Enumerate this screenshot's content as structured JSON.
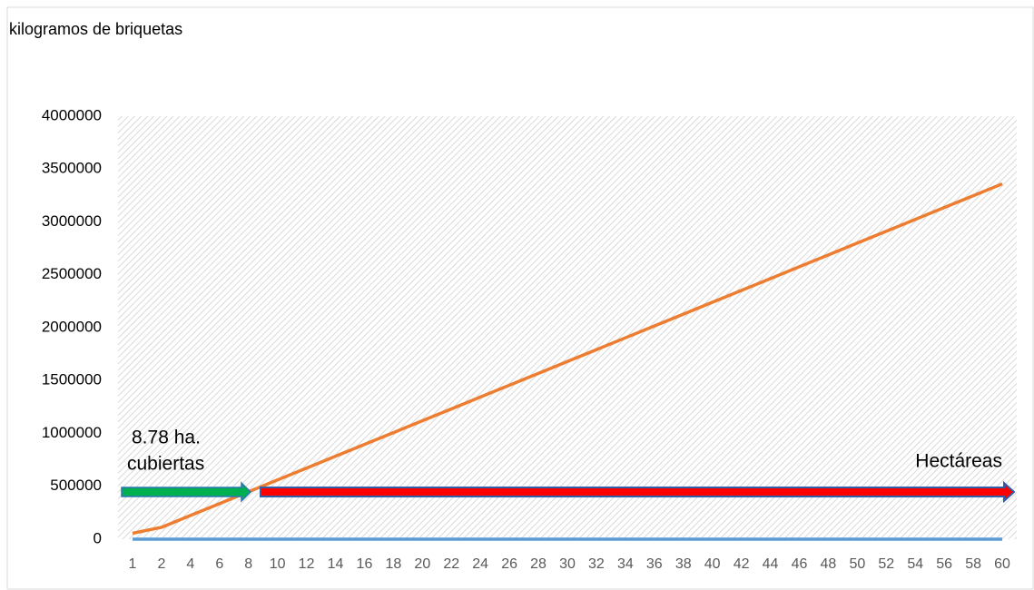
{
  "chart_data": {
    "type": "line",
    "title": "kilogramos de briquetas",
    "categories": [
      1,
      2,
      4,
      6,
      8,
      10,
      12,
      14,
      16,
      18,
      20,
      22,
      24,
      26,
      28,
      30,
      32,
      34,
      36,
      38,
      40,
      42,
      44,
      46,
      48,
      50,
      52,
      54,
      56,
      58,
      60
    ],
    "series": [
      {
        "color": "#ed7d31",
        "values": [
          56000,
          112000,
          224000,
          336000,
          448000,
          560000,
          672000,
          784000,
          896000,
          1008000,
          1120000,
          1232000,
          1344000,
          1456000,
          1568000,
          1680000,
          1792000,
          1904000,
          2016000,
          2128000,
          2240000,
          2352000,
          2464000,
          2576000,
          2688000,
          2800000,
          2912000,
          3024000,
          3136000,
          3248000,
          3360000
        ]
      },
      {
        "color": "#5b9bd5",
        "values": [
          0,
          0,
          0,
          0,
          0,
          0,
          0,
          0,
          0,
          0,
          0,
          0,
          0,
          0,
          0,
          0,
          0,
          0,
          0,
          0,
          0,
          0,
          0,
          0,
          0,
          0,
          0,
          0,
          0,
          0,
          0
        ]
      }
    ],
    "ylim": [
      0,
      4000000
    ],
    "yticks": [
      0,
      500000,
      1000000,
      1500000,
      2000000,
      2500000,
      3000000,
      3500000,
      4000000
    ],
    "annotations": [
      "8.78 ha.",
      "cubiertas",
      "Hectáreas"
    ]
  }
}
